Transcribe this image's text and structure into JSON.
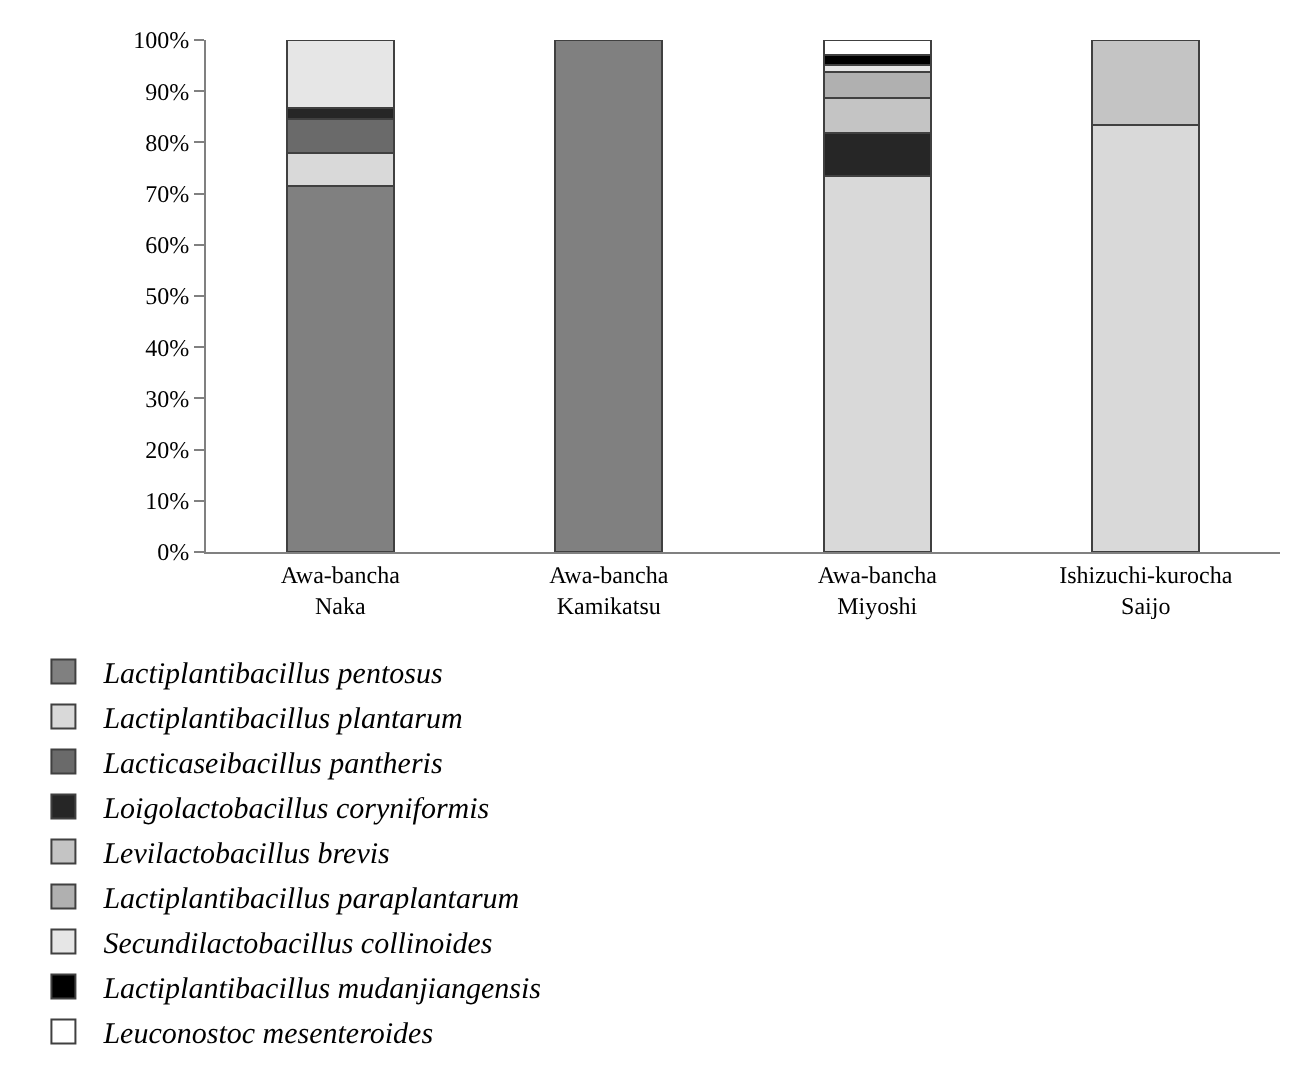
{
  "chart_data": {
    "type": "bar",
    "stacked": true,
    "categories": [
      "Awa-bancha\nNaka",
      "Awa-bancha\nKamikatsu",
      "Awa-bancha\nMiyoshi",
      "Ishizuchi-kurocha\nSaijo"
    ],
    "series": [
      {
        "name": "Lactiplantibacillus pentosus",
        "color": "#808080",
        "values": [
          71.5,
          100,
          null,
          null
        ]
      },
      {
        "name": "Lactiplantibacillus plantarum",
        "color": "#d9d9d9",
        "values": [
          6.5,
          null,
          73.4,
          83.4
        ]
      },
      {
        "name": "Lacticaseibacillus pantheris",
        "color": "#6a6a6a",
        "values": [
          6.5,
          null,
          null,
          null
        ]
      },
      {
        "name": "Loigolactobacillus coryniformis",
        "color": "#262626",
        "values": [
          2.3,
          null,
          8.4,
          null
        ]
      },
      {
        "name": "Levilactobacillus brevis",
        "color": "#c4c4c4",
        "values": [
          null,
          null,
          6.8,
          16.6
        ]
      },
      {
        "name": "Lactiplantibacillus paraplantarum",
        "color": "#b0b0b0",
        "values": [
          null,
          null,
          5.1,
          null
        ]
      },
      {
        "name": "Secundilactobacillus collinoides",
        "color": "#e6e6e6",
        "values": [
          13.2,
          null,
          1.5,
          null
        ]
      },
      {
        "name": "Lactiplantibacillus mudanjiangensis",
        "color": "#000000",
        "values": [
          null,
          null,
          1.8,
          null
        ]
      },
      {
        "name": "Leuconostoc mesenteroides",
        "color": "#ffffff",
        "values": [
          null,
          null,
          3.0,
          null
        ]
      }
    ],
    "ylim": [
      0,
      100
    ],
    "yticks": [
      {
        "value": 0,
        "label": "0%"
      },
      {
        "value": 10,
        "label": "10%"
      },
      {
        "value": 20,
        "label": "20%"
      },
      {
        "value": 30,
        "label": "30%"
      },
      {
        "value": 40,
        "label": "40%"
      },
      {
        "value": 50,
        "label": "50%"
      },
      {
        "value": 60,
        "label": "60%"
      },
      {
        "value": 70,
        "label": "70%"
      },
      {
        "value": 80,
        "label": "80%"
      },
      {
        "value": 90,
        "label": "90%"
      },
      {
        "value": 100,
        "label": "100%"
      }
    ],
    "grid": false,
    "legend": "bottom"
  }
}
